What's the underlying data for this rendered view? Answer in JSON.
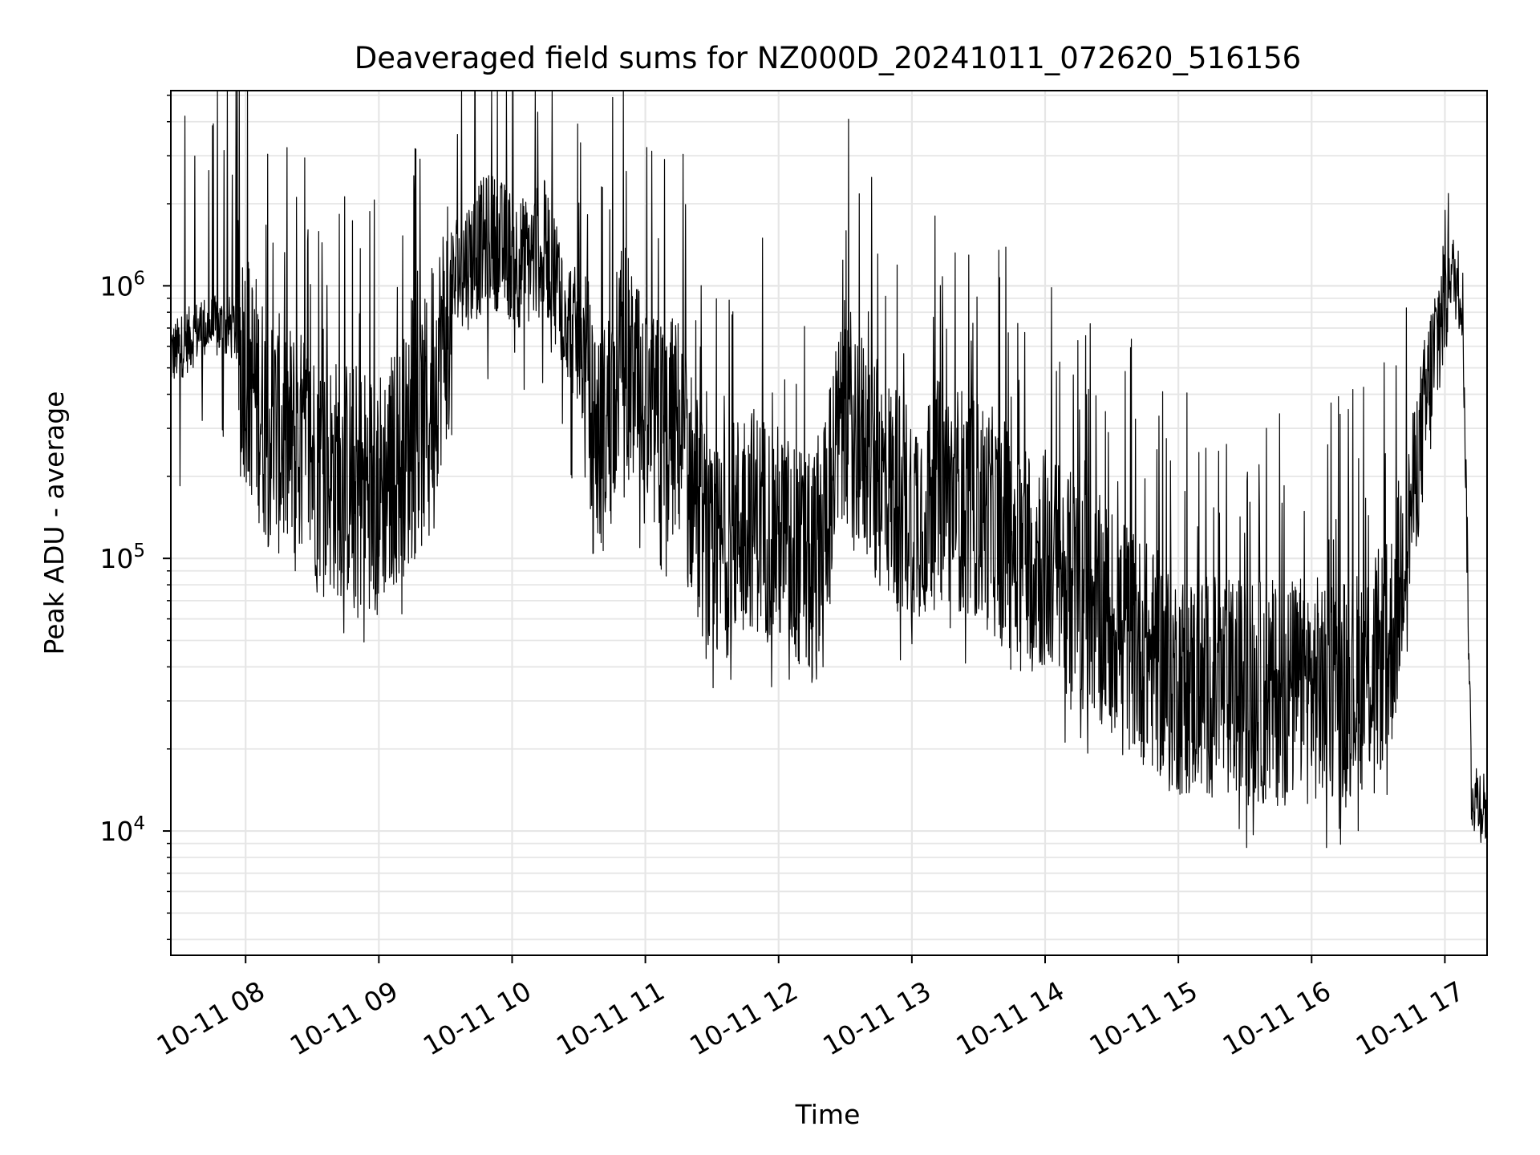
{
  "colors": {
    "background": "#ffffff",
    "grid": "#e6e6e6",
    "line": "#000000",
    "axes": "#000000"
  },
  "chart_data": {
    "type": "line",
    "title": "Deaveraged field sums for NZ000D_20241011_072620_516156",
    "xlabel": "Time",
    "ylabel": "Peak ADU - average",
    "yscale": "log",
    "grid": true,
    "grid_minor_y": true,
    "xlim": [
      "2024-10-11 07:26:20",
      "2024-10-11 17:19:00"
    ],
    "ylim": [
      3500,
      5200000
    ],
    "x_ticks": [
      "10-11 08",
      "10-11 09",
      "10-11 10",
      "10-11 11",
      "10-11 12",
      "10-11 13",
      "10-11 14",
      "10-11 15",
      "10-11 16",
      "10-11 17"
    ],
    "x_tick_values": [
      "2024-10-11 08:00",
      "2024-10-11 09:00",
      "2024-10-11 10:00",
      "2024-10-11 11:00",
      "2024-10-11 12:00",
      "2024-10-11 13:00",
      "2024-10-11 14:00",
      "2024-10-11 15:00",
      "2024-10-11 16:00",
      "2024-10-11 17:00"
    ],
    "y_ticks": [
      {
        "base": "10",
        "exp": "4",
        "value": 10000
      },
      {
        "base": "10",
        "exp": "5",
        "value": 100000
      },
      {
        "base": "10",
        "exp": "6",
        "value": 1000000
      }
    ],
    "series": [
      {
        "x": [
          "2024-10-11 07:26",
          "2024-10-11 07:40",
          "2024-10-11 07:55",
          "2024-10-11 08:10",
          "2024-10-11 08:25",
          "2024-10-11 08:40",
          "2024-10-11 09:00",
          "2024-10-11 09:20",
          "2024-10-11 09:35",
          "2024-10-11 09:50",
          "2024-10-11 10:05",
          "2024-10-11 10:15",
          "2024-10-11 10:30",
          "2024-10-11 10:40",
          "2024-10-11 10:50",
          "2024-10-11 11:00",
          "2024-10-11 11:15",
          "2024-10-11 11:30",
          "2024-10-11 11:45",
          "2024-10-11 12:00",
          "2024-10-11 12:15",
          "2024-10-11 12:30",
          "2024-10-11 12:45",
          "2024-10-11 13:00",
          "2024-10-11 13:15",
          "2024-10-11 13:30",
          "2024-10-11 13:45",
          "2024-10-11 14:00",
          "2024-10-11 14:15",
          "2024-10-11 14:30",
          "2024-10-11 14:45",
          "2024-10-11 15:00",
          "2024-10-11 15:20",
          "2024-10-11 15:40",
          "2024-10-11 16:00",
          "2024-10-11 16:20",
          "2024-10-11 16:35",
          "2024-10-11 16:50",
          "2024-10-11 17:02",
          "2024-10-11 17:08",
          "2024-10-11 17:12",
          "2024-10-11 17:19"
        ],
        "y": [
          550000,
          700000,
          700000,
          300000,
          250000,
          200000,
          180000,
          300000,
          1100000,
          1500000,
          1200000,
          1400000,
          600000,
          250000,
          600000,
          300000,
          300000,
          90000,
          150000,
          120000,
          90000,
          350000,
          200000,
          150000,
          180000,
          150000,
          120000,
          100000,
          75000,
          60000,
          45000,
          35000,
          33000,
          32000,
          33000,
          35000,
          45000,
          300000,
          1200000,
          900000,
          14000,
          12000
        ]
      }
    ]
  }
}
